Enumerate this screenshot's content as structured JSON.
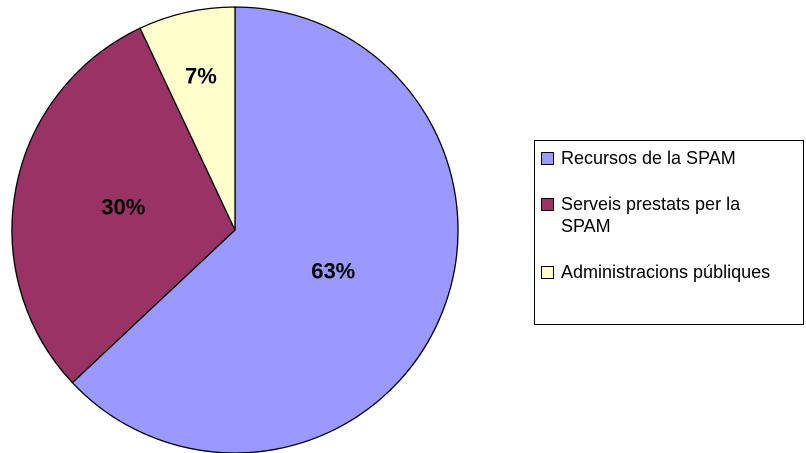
{
  "chart_data": {
    "type": "pie",
    "categories": [
      "Recursos de la SPAM",
      "Serveis prestats per la SPAM",
      "Administracions públiques"
    ],
    "values": [
      63,
      30,
      7
    ],
    "value_labels": [
      "63%",
      "30%",
      "7%"
    ],
    "colors": [
      "#9999ff",
      "#993366",
      "#ffffcc"
    ]
  }
}
